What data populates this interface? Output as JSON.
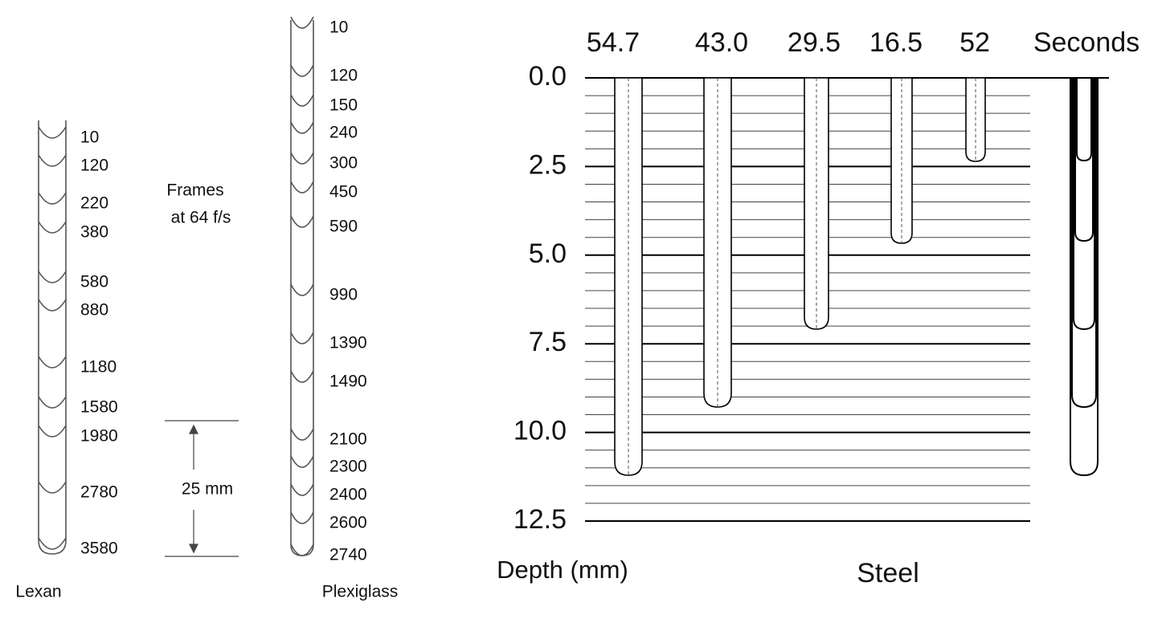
{
  "lexan": {
    "label": "Lexan",
    "frames": [
      "10",
      "120",
      "220",
      "380",
      "580",
      "880",
      "1180",
      "1580",
      "1980",
      "2780",
      "3580"
    ]
  },
  "plexiglass": {
    "label": "Plexiglass",
    "frames": [
      "10",
      "120",
      "150",
      "240",
      "300",
      "450",
      "590",
      "990",
      "1390",
      "1490",
      "2100",
      "2300",
      "2400",
      "2600",
      "2740"
    ]
  },
  "annotation": {
    "frames_line1": "Frames",
    "frames_line2": "at 64 f/s",
    "scale": "25 mm"
  },
  "steel": {
    "times": [
      "54.7",
      "43.0",
      "29.5",
      "16.5",
      "52"
    ],
    "times_unit": "Seconds",
    "depth_labels": [
      "0.0",
      "2.5",
      "5.0",
      "7.5",
      "10.0",
      "12.5"
    ],
    "depth_title": "Depth (mm)",
    "label": "Steel"
  }
}
